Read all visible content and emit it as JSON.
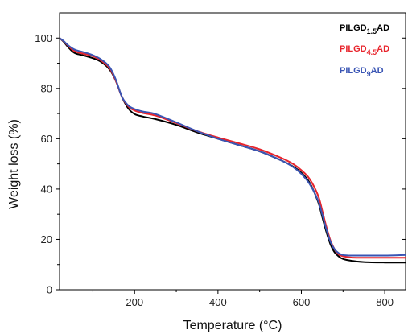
{
  "chart_data": {
    "type": "line",
    "title": "",
    "xlabel": "Temperature (°C)",
    "ylabel": "Weight loss (%)",
    "xlim": [
      20,
      850
    ],
    "ylim": [
      0,
      110
    ],
    "x_ticks": [
      200,
      400,
      600,
      800
    ],
    "x_tick_labels": [
      "200",
      "400",
      "600",
      "800"
    ],
    "y_ticks": [
      0,
      20,
      40,
      60,
      80,
      100
    ],
    "y_tick_labels": [
      "0",
      "20",
      "40",
      "60",
      "80",
      "100"
    ],
    "grid": false,
    "legend_position": "top-right",
    "series": [
      {
        "name": "PILGD",
        "subscript": "1.5",
        "suffix": "AD",
        "color": "#000000",
        "x": [
          20,
          30,
          40,
          50,
          60,
          80,
          100,
          120,
          140,
          155,
          170,
          185,
          200,
          220,
          250,
          300,
          350,
          400,
          450,
          500,
          550,
          580,
          600,
          620,
          640,
          650,
          660,
          670,
          680,
          690,
          700,
          720,
          750,
          800,
          850
        ],
        "y": [
          100,
          98.5,
          96.5,
          94.8,
          93.8,
          93.0,
          92.0,
          90.5,
          87.5,
          83.0,
          76.5,
          72.0,
          69.8,
          68.8,
          67.8,
          65.5,
          62.5,
          60.0,
          57.5,
          55.0,
          51.5,
          49.0,
          46.5,
          42.5,
          35.0,
          29.0,
          23.0,
          18.0,
          14.8,
          13.2,
          12.2,
          11.5,
          11.0,
          10.8,
          10.8
        ]
      },
      {
        "name": "PILGD",
        "subscript": "4.5",
        "suffix": "AD",
        "color": "#e8242c",
        "x": [
          20,
          30,
          40,
          50,
          60,
          80,
          100,
          120,
          140,
          155,
          170,
          185,
          200,
          220,
          250,
          300,
          350,
          400,
          450,
          500,
          550,
          580,
          600,
          620,
          640,
          650,
          660,
          670,
          680,
          690,
          700,
          720,
          750,
          800,
          850
        ],
        "y": [
          100,
          98.7,
          97.0,
          95.5,
          94.5,
          93.7,
          92.8,
          91.0,
          88.0,
          83.0,
          76.5,
          72.8,
          71.2,
          70.2,
          69.2,
          66.2,
          63.0,
          60.5,
          58.2,
          55.8,
          52.5,
          50.0,
          47.5,
          44.0,
          37.5,
          31.5,
          25.0,
          19.5,
          16.0,
          14.0,
          13.3,
          12.8,
          12.7,
          12.7,
          12.7
        ]
      },
      {
        "name": "PILGD",
        "subscript": "9",
        "suffix": "AD",
        "color": "#3a55b4",
        "x": [
          20,
          30,
          40,
          50,
          60,
          80,
          100,
          120,
          140,
          155,
          170,
          185,
          200,
          220,
          250,
          300,
          350,
          400,
          450,
          500,
          550,
          580,
          600,
          620,
          640,
          650,
          660,
          670,
          680,
          690,
          700,
          720,
          750,
          800,
          850
        ],
        "y": [
          100,
          98.8,
          97.2,
          96.0,
          95.2,
          94.3,
          93.2,
          91.5,
          88.5,
          83.5,
          76.5,
          73.2,
          71.8,
          70.8,
          69.8,
          66.5,
          63.0,
          60.0,
          57.5,
          55.0,
          51.5,
          48.8,
          46.0,
          42.0,
          35.5,
          30.0,
          24.0,
          19.0,
          16.0,
          14.5,
          13.8,
          13.6,
          13.6,
          13.6,
          13.8
        ]
      }
    ]
  }
}
